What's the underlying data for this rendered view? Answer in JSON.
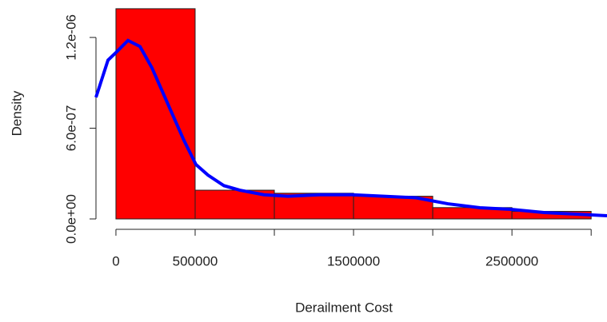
{
  "chart_data": {
    "type": "histogram",
    "x_label": "Derailment Cost",
    "y_label": "Density",
    "bins": [
      0,
      500000,
      1000000,
      1500000,
      2000000,
      2500000,
      3000000
    ],
    "values": [
      1.39e-06,
      1.9e-07,
      1.7e-07,
      1.5e-07,
      7.5e-08,
      5e-08
    ],
    "color": "#ff0000",
    "xlim": [
      -126000,
      3100000
    ],
    "ylim": [
      0,
      1.4e-06
    ],
    "xticks": [
      0,
      500000,
      1500000,
      2500000
    ],
    "yticks": [
      {
        "value": 0,
        "label": "0.0e+00"
      },
      {
        "value": 6e-07,
        "label": "6.0e-07"
      },
      {
        "value": 1.2e-06,
        "label": "1.2e-06"
      }
    ],
    "overlay": {
      "type": "line",
      "color": "#0000ff",
      "x": [
        -126000,
        -50000,
        0,
        76000,
        152000,
        227000,
        328000,
        429000,
        505000,
        581000,
        682000,
        783000,
        934000,
        1086000,
        1288000,
        1490000,
        1692000,
        1894000,
        2096000,
        2298000,
        2500000,
        2702000,
        2904000,
        3100000
      ],
      "values": [
        8.04e-07,
        1.05e-06,
        1.1e-06,
        1.18e-06,
        1.14e-06,
        1e-06,
        7.6e-07,
        5.2e-07,
        3.6e-07,
        2.9e-07,
        2.2e-07,
        1.9e-07,
        1.6e-07,
        1.5e-07,
        1.6e-07,
        1.6e-07,
        1.5e-07,
        1.4e-07,
        1e-07,
        7.4e-08,
        6.3e-08,
        4.2e-08,
        3.2e-08,
        2.1e-08
      ]
    }
  }
}
